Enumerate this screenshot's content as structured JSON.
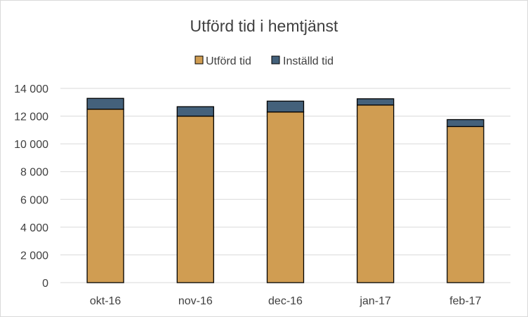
{
  "chart_data": {
    "type": "bar",
    "stacked": true,
    "title": "Utförd tid i hemtjänst",
    "categories": [
      "okt-16",
      "nov-16",
      "dec-16",
      "jan-17",
      "feb-17"
    ],
    "series": [
      {
        "name": "Utförd tid",
        "color": "#D09D52",
        "values": [
          12500,
          12000,
          12300,
          12800,
          11250
        ]
      },
      {
        "name": "Inställd tid",
        "color": "#44617B",
        "values": [
          780,
          680,
          780,
          450,
          500
        ]
      }
    ],
    "ylim": [
      0,
      14000
    ],
    "yticks": [
      0,
      2000,
      4000,
      6000,
      8000,
      10000,
      12000,
      14000
    ],
    "ytick_labels": [
      "0",
      "2 000",
      "4 000",
      "6 000",
      "8 000",
      "10 000",
      "12 000",
      "14 000"
    ],
    "xlabel": "",
    "ylabel": "",
    "grid": true,
    "legend_position": "top"
  }
}
